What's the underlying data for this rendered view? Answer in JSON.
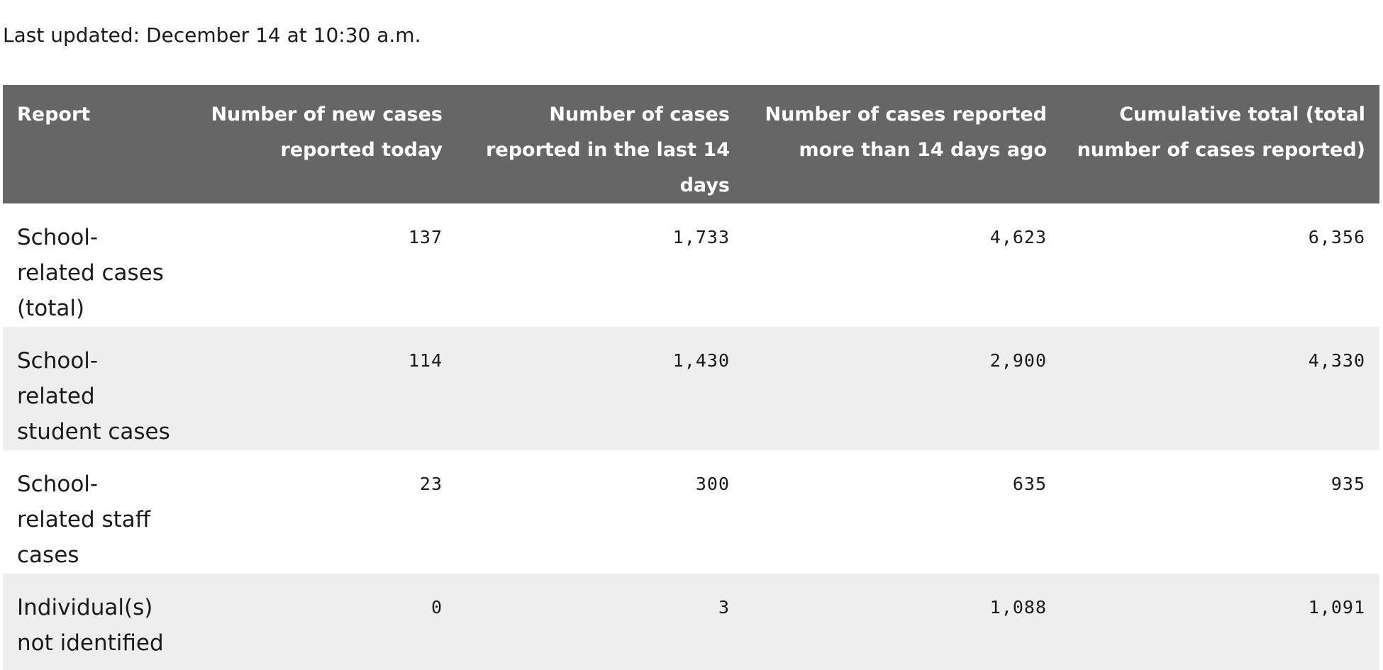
{
  "last_updated": "Last updated: December 14 at 10:30 a.m.",
  "table": {
    "headers": [
      "Report",
      "Number of new cases reported today",
      "Number of cases reported in the last 14 days",
      "Number of cases reported more than 14 days ago",
      "Cumulative total (total number of cases reported)"
    ],
    "rows": [
      {
        "report": "School-related cases (total)",
        "new_today": "137",
        "last_14_days": "1,733",
        "more_than_14_days": "4,623",
        "cumulative": "6,356"
      },
      {
        "report": "School-related student cases",
        "new_today": "114",
        "last_14_days": "1,430",
        "more_than_14_days": "2,900",
        "cumulative": "4,330"
      },
      {
        "report": "School-related staff cases",
        "new_today": "23",
        "last_14_days": "300",
        "more_than_14_days": "635",
        "cumulative": "935"
      },
      {
        "report": "Individual(s) not identified",
        "new_today": "0",
        "last_14_days": "3",
        "more_than_14_days": "1,088",
        "cumulative": "1,091"
      }
    ]
  },
  "colors": {
    "header_background": "#666666",
    "header_text": "#ffffff",
    "alt_row_background": "#eeeeee"
  }
}
